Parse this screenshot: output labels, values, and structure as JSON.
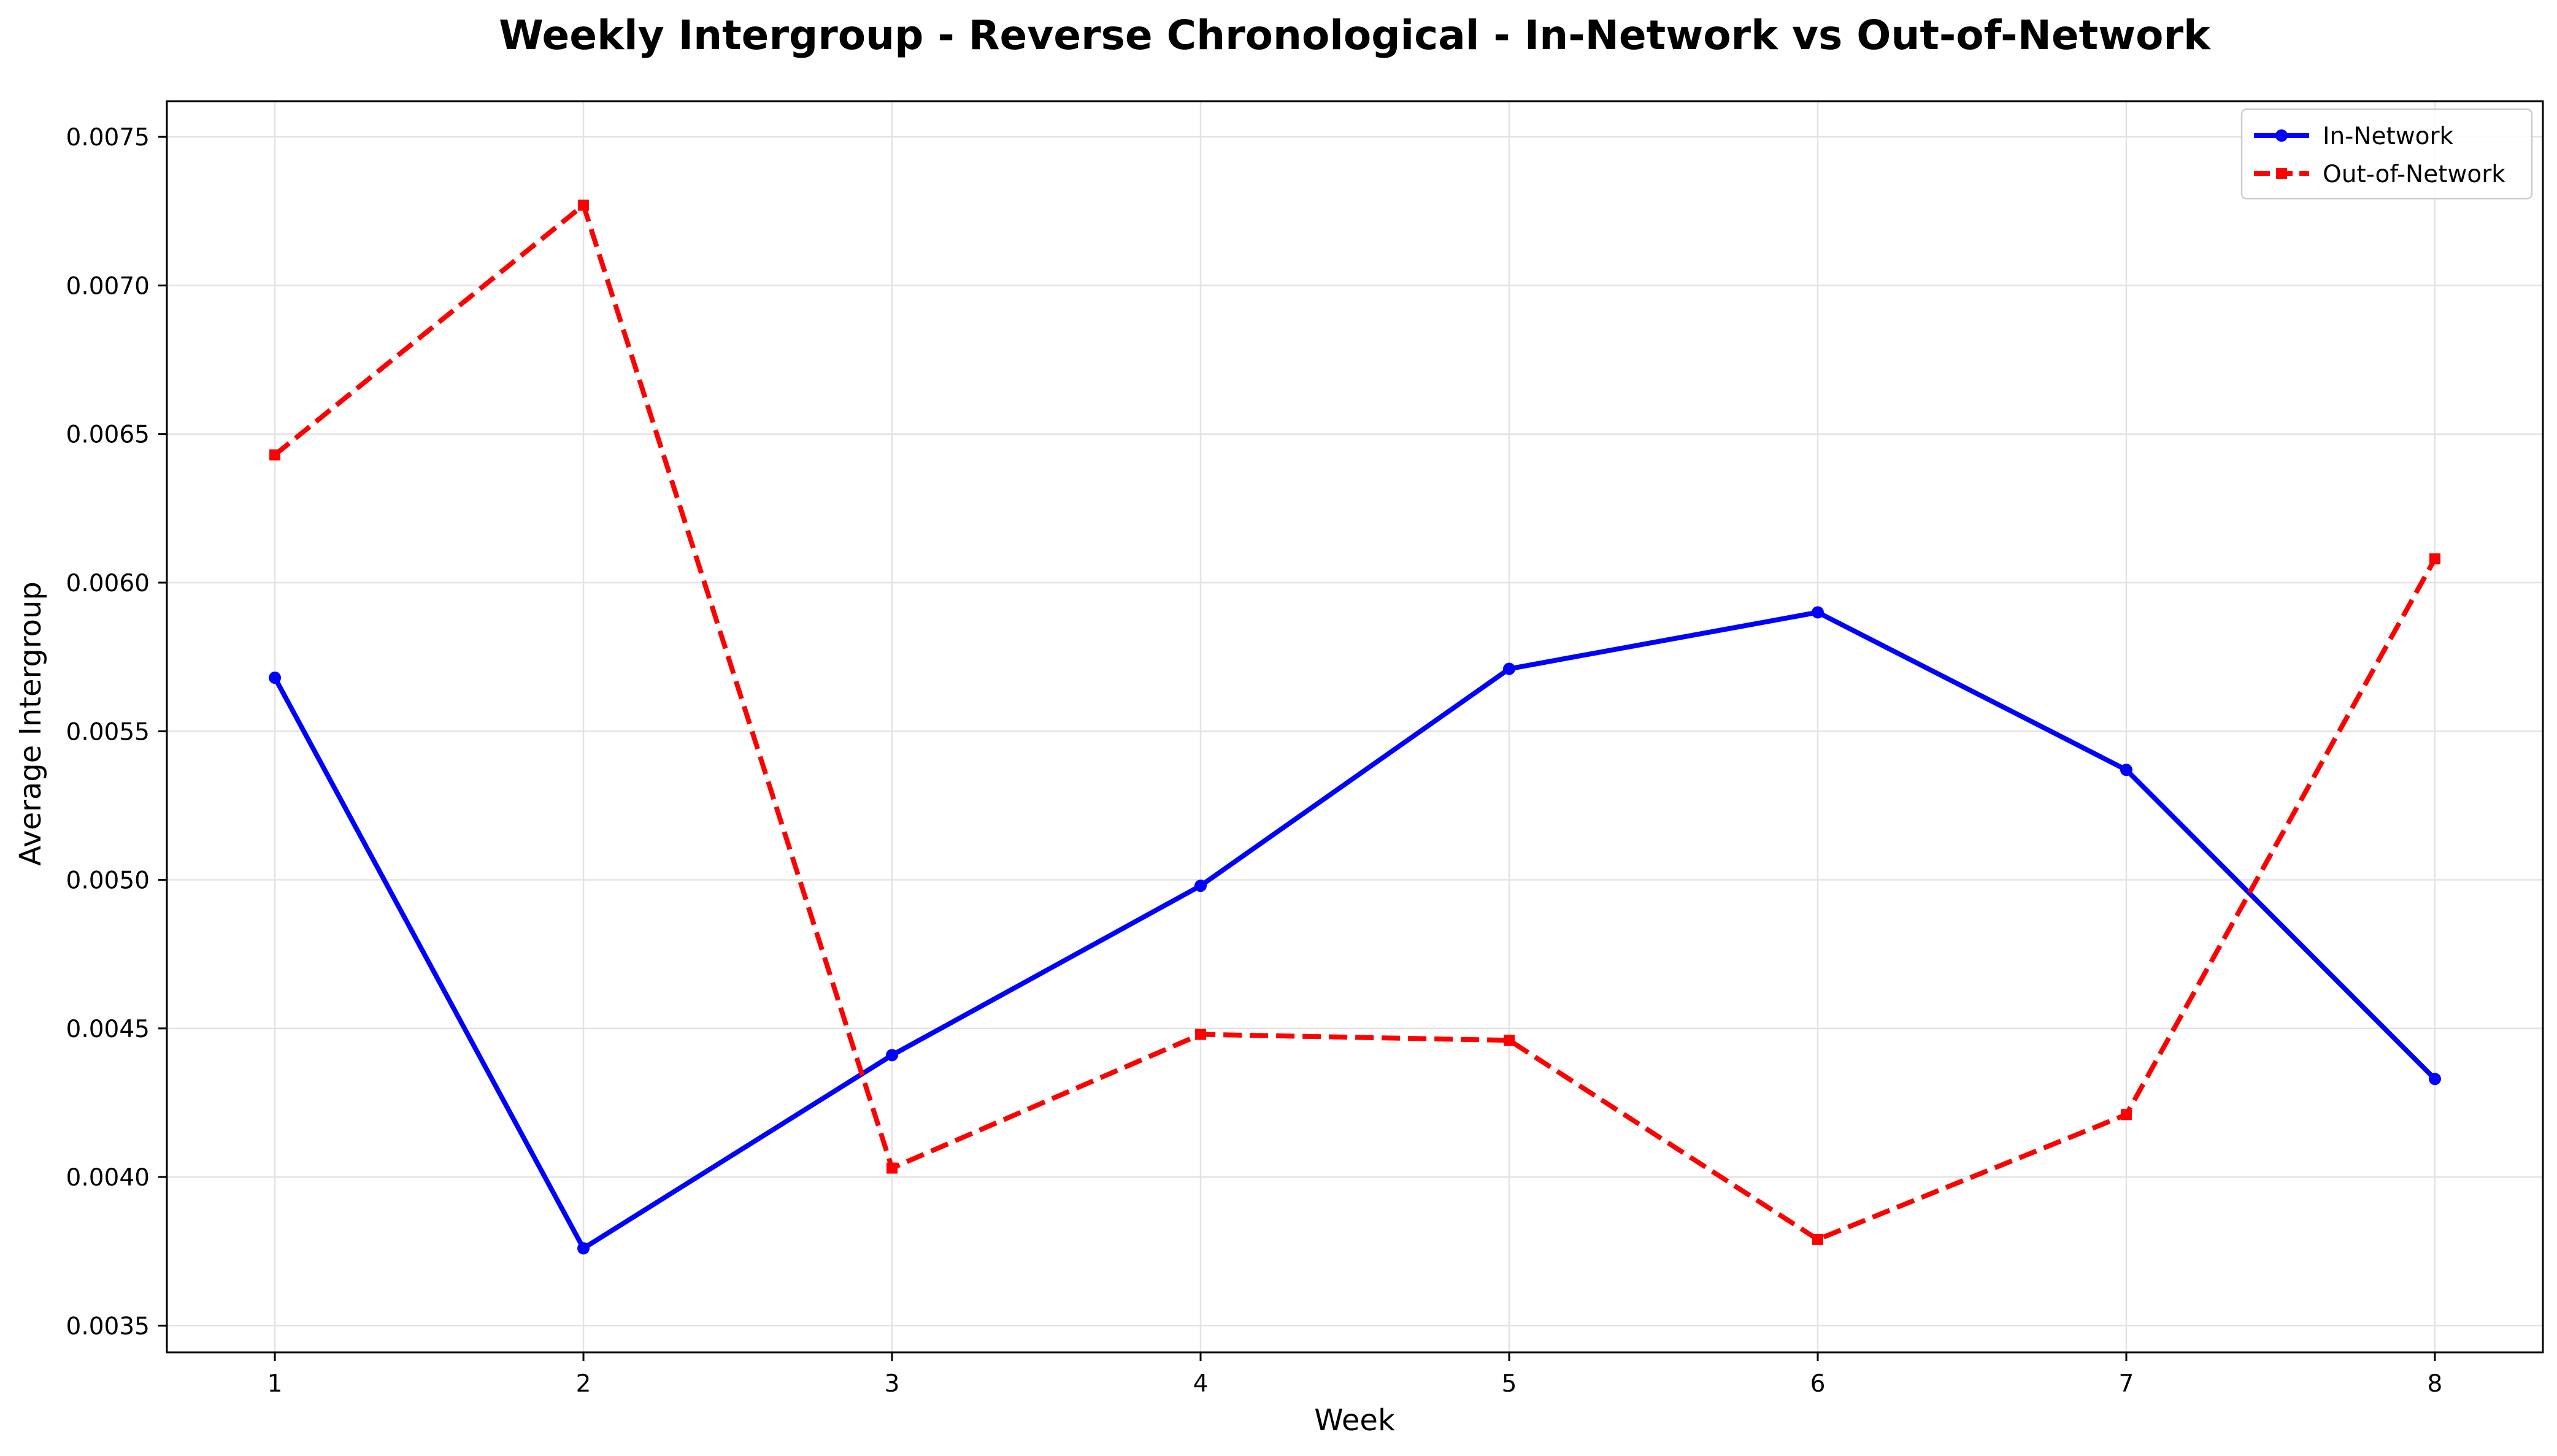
{
  "chart_data": {
    "type": "line",
    "title": "Weekly Intergroup - Reverse Chronological - In-Network vs Out-of-Network",
    "xlabel": "Week",
    "ylabel": "Average Intergroup",
    "x": [
      1,
      2,
      3,
      4,
      5,
      6,
      7,
      8
    ],
    "x_tick_labels": [
      "1",
      "2",
      "3",
      "4",
      "5",
      "6",
      "7",
      "8"
    ],
    "xlim": [
      0.65,
      8.35
    ],
    "ylim": [
      0.00341,
      0.00762
    ],
    "y_ticks": [
      0.0035,
      0.004,
      0.0045,
      0.005,
      0.0055,
      0.006,
      0.0065,
      0.007,
      0.0075
    ],
    "y_tick_labels": [
      "0.0035",
      "0.0040",
      "0.0045",
      "0.0050",
      "0.0055",
      "0.0060",
      "0.0065",
      "0.0070",
      "0.0075"
    ],
    "grid": true,
    "legend_position": "top-right",
    "series": [
      {
        "name": "In-Network",
        "color": "#0000ff",
        "line_style": "solid",
        "marker": "circle",
        "values": [
          0.00568,
          0.00376,
          0.00441,
          0.00498,
          0.00571,
          0.0059,
          0.00537,
          0.00433
        ]
      },
      {
        "name": "Out-of-Network",
        "color": "#ff0000",
        "line_style": "dashed",
        "marker": "square",
        "values": [
          0.00643,
          0.00727,
          0.00403,
          0.00448,
          0.00446,
          0.00379,
          0.00421,
          0.00608
        ]
      }
    ]
  }
}
